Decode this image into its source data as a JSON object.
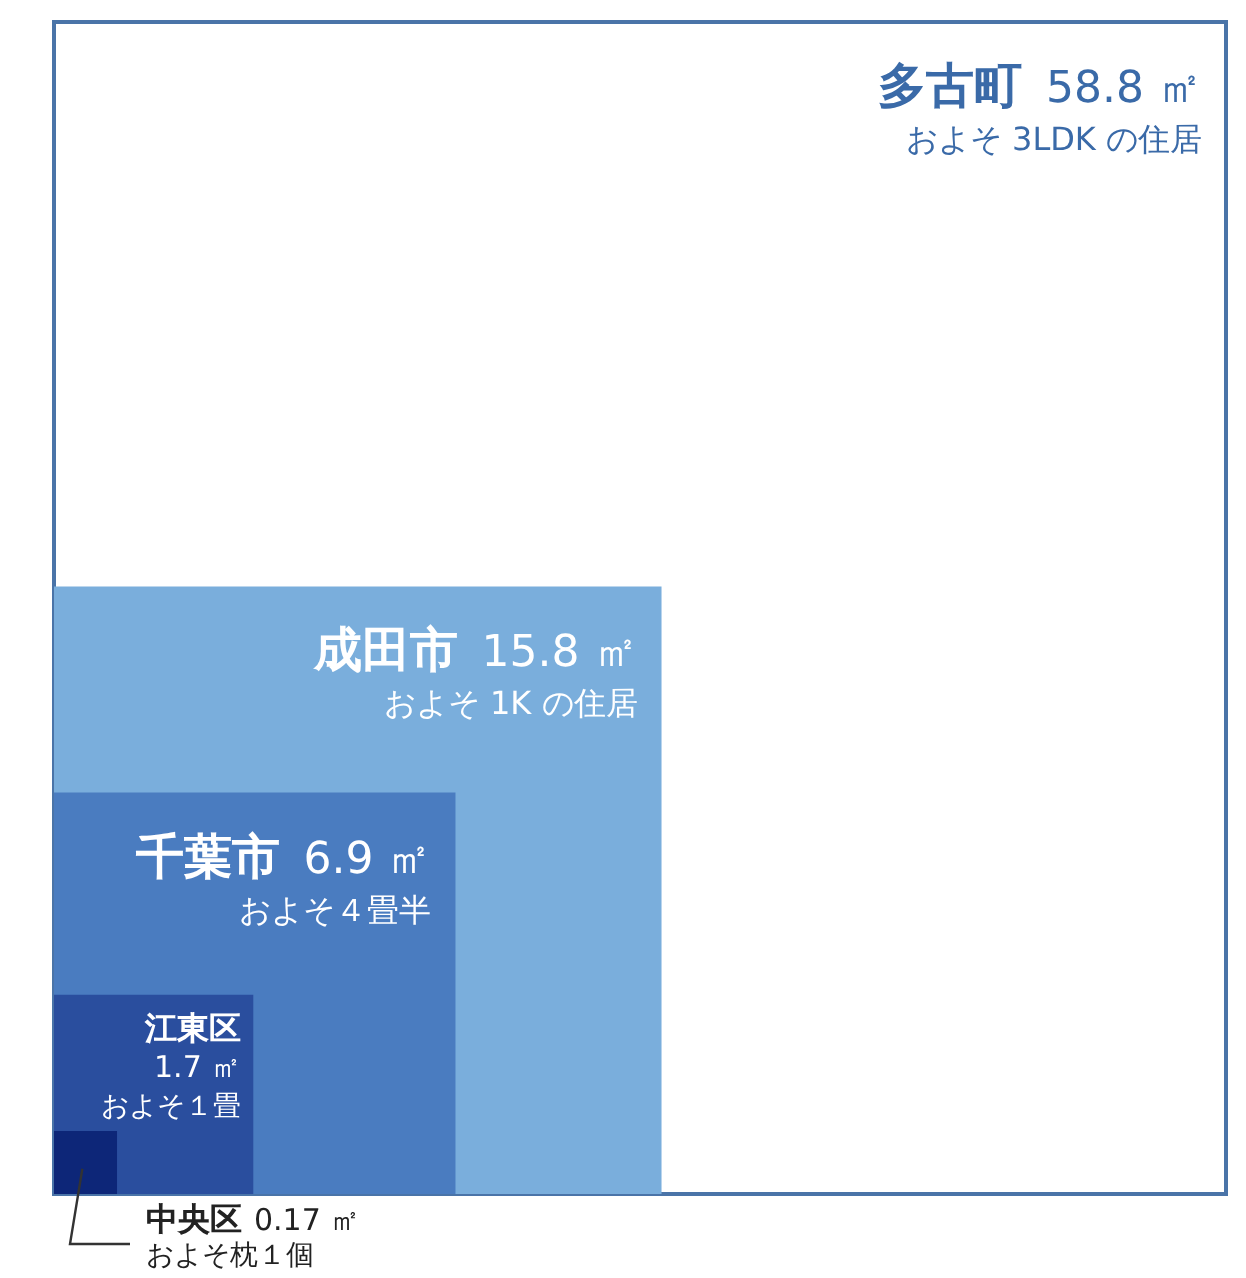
{
  "chart_data": {
    "type": "other",
    "categories": [
      "多古町",
      "成田市",
      "千葉市",
      "江東区",
      "中央区"
    ],
    "values": [
      58.8,
      15.8,
      6.9,
      1.7,
      0.17
    ],
    "value_labels": [
      "58.8 ㎡",
      "15.8 ㎡",
      "6.9 ㎡",
      "1.7 ㎡",
      "0.17 ㎡"
    ],
    "colors": [
      "#ffffff",
      "#7aaedc",
      "#4a7cc0",
      "#2a4e9e",
      "#0d2678"
    ],
    "annotations": [
      {
        "text": "およそ 3LDK の住居",
        "x": "多古町"
      },
      {
        "text": "およそ 1K の住居",
        "x": "成田市"
      },
      {
        "text": "およそ４畳半",
        "x": "千葉市"
      },
      {
        "text": "およそ１畳",
        "x": "江東区"
      },
      {
        "text": "およそ枕１個",
        "x": "中央区"
      }
    ]
  }
}
